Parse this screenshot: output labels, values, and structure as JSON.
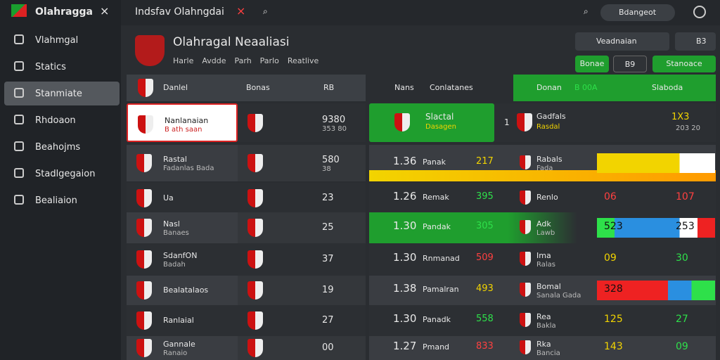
{
  "brand": "Olahragga",
  "sidebar": {
    "items": [
      "Vlahmgal",
      "Statics",
      "Stanmiate",
      "Rhdoaon",
      "Beahojms",
      "Stadlgegaion",
      "Bealiaion"
    ],
    "active": 2
  },
  "topbar": {
    "title": "Indsfav Olahngdai",
    "user": "Bdangeot"
  },
  "header": {
    "title": "Olahragal Neaaliasi",
    "tabs": [
      "Harle",
      "Avdde",
      "Parh",
      "Parlo",
      "Reatlive"
    ],
    "controls": [
      "Veadnaian",
      "B3"
    ],
    "buttons": [
      "Bonae",
      "B9",
      "Stanoace"
    ]
  },
  "left_table": {
    "columns": [
      "Danlel",
      "Bonas",
      "RB"
    ],
    "rows": [
      {
        "name": "Nanlanaian",
        "sub": "B ath saan",
        "score": "9380",
        "score_sub": "353 80"
      },
      {
        "name": "Rastal",
        "sub": "Fadanlas Bada",
        "score": "580",
        "score_sub": "38"
      },
      {
        "name": "Ua",
        "score": "23"
      },
      {
        "name": "Nasl",
        "sub": "Banaes",
        "score": "25"
      },
      {
        "name": "SdanfON",
        "sub": "Badah",
        "score": "37"
      },
      {
        "name": "Bealatalaos",
        "score": "19"
      },
      {
        "name": "Ranlaial",
        "score": "27"
      },
      {
        "name": "Gannale",
        "sub": "Ranaio",
        "score": "00"
      }
    ]
  },
  "right_table": {
    "columns": [
      "Nans",
      "Conlatanes",
      "Donan",
      "B 00A",
      "Slaboda"
    ],
    "featured": {
      "name": "Slactal",
      "sub": "Dasagen",
      "num": "1",
      "team": "Gadfals",
      "team_sub": "Rasdal",
      "score": "1X3",
      "score_sub": "203 20"
    },
    "rows": [
      {
        "odds": "1.36",
        "name": "Panak",
        "num": "217",
        "team": "Rabals",
        "team_sub": "Fada"
      },
      {
        "odds": "1.26",
        "name": "Remak",
        "num": "395",
        "team": "Renlo",
        "a": "06",
        "b": "107"
      },
      {
        "odds": "1.30",
        "name": "Pandak",
        "num": "305",
        "team": "Adk",
        "team_sub": "Lawb",
        "a": "523",
        "b": "253"
      },
      {
        "odds": "1.30",
        "name": "Rnmanad",
        "num": "509",
        "team": "Ima",
        "team_sub": "Ralas",
        "a": "09",
        "b": "30"
      },
      {
        "odds": "1.38",
        "name": "Pamalran",
        "num": "493",
        "team": "Bomal",
        "team_sub": "Sanala Gada",
        "a": "328"
      },
      {
        "odds": "1.30",
        "name": "Panadk",
        "num": "558",
        "team": "Rea",
        "team_sub": "Bakla",
        "a": "125",
        "b": "27"
      },
      {
        "odds": "1.27",
        "name": "Pmand",
        "num": "833",
        "team": "Rka",
        "team_sub": "Bancia",
        "a": "143",
        "b": "09"
      }
    ]
  }
}
